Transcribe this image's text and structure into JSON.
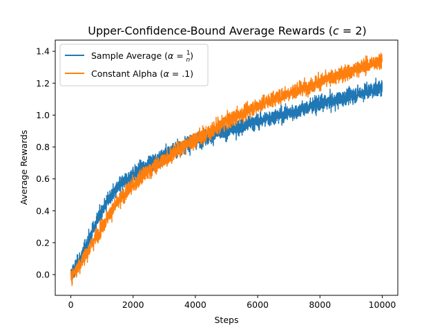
{
  "chart_data": {
    "type": "line",
    "title": "Upper-Confidence-Bound Average Rewards (c = 2)",
    "xlabel": "Steps",
    "ylabel": "Average Rewards",
    "xlim": [
      -500,
      10500
    ],
    "ylim": [
      -0.13,
      1.47
    ],
    "xticks": [
      0,
      2000,
      4000,
      6000,
      8000,
      10000
    ],
    "xtick_labels": [
      "0",
      "2000",
      "4000",
      "6000",
      "8000",
      "10000"
    ],
    "yticks": [
      0.0,
      0.2,
      0.4,
      0.6,
      0.8,
      1.0,
      1.2,
      1.4
    ],
    "ytick_labels": [
      "0.0",
      "0.2",
      "0.4",
      "0.6",
      "0.8",
      "1.0",
      "1.2",
      "1.4"
    ],
    "grid": false,
    "legend_position": "top-left",
    "series": [
      {
        "name": "Sample Average (α = 1/n)",
        "color": "#1f77b4",
        "noise": 0.035,
        "x": [
          0,
          250,
          500,
          750,
          1000,
          1250,
          1500,
          1750,
          2000,
          2500,
          3000,
          3500,
          4000,
          4500,
          5000,
          5500,
          6000,
          6500,
          7000,
          7500,
          8000,
          8500,
          9000,
          9500,
          10000
        ],
        "y": [
          0.0,
          0.08,
          0.18,
          0.3,
          0.4,
          0.48,
          0.54,
          0.59,
          0.63,
          0.69,
          0.75,
          0.8,
          0.84,
          0.87,
          0.9,
          0.93,
          0.96,
          0.99,
          1.01,
          1.04,
          1.07,
          1.09,
          1.12,
          1.15,
          1.17
        ]
      },
      {
        "name": "Constant Alpha (α = .1)",
        "color": "#ff7f0e",
        "noise": 0.035,
        "x": [
          0,
          250,
          500,
          750,
          1000,
          1250,
          1500,
          1750,
          2000,
          2500,
          3000,
          3500,
          4000,
          4500,
          5000,
          5500,
          6000,
          6500,
          7000,
          7500,
          8000,
          8500,
          9000,
          9500,
          10000
        ],
        "y": [
          -0.01,
          0.05,
          0.13,
          0.22,
          0.3,
          0.38,
          0.45,
          0.51,
          0.56,
          0.65,
          0.72,
          0.79,
          0.85,
          0.9,
          0.96,
          1.01,
          1.06,
          1.1,
          1.14,
          1.17,
          1.21,
          1.24,
          1.28,
          1.31,
          1.35
        ]
      }
    ]
  }
}
